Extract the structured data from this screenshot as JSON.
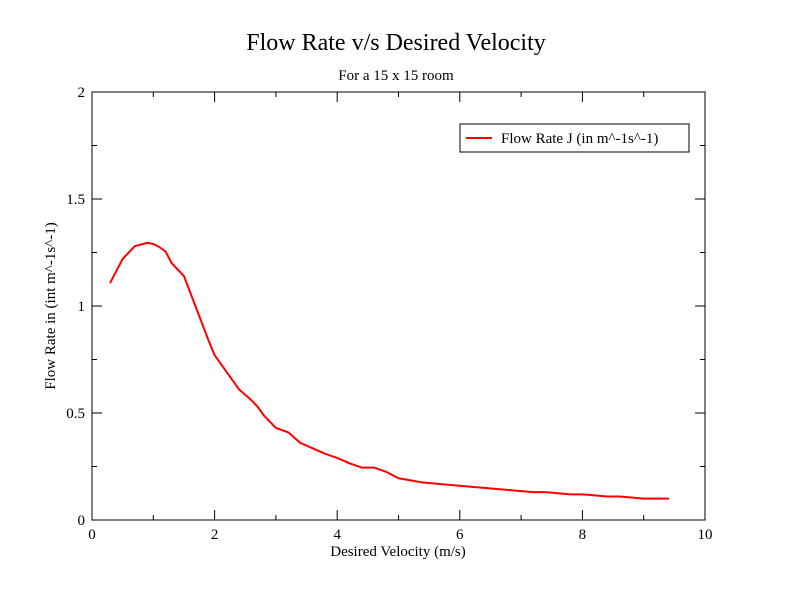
{
  "chart_data": {
    "type": "line",
    "title": "Flow Rate v/s Desired Velocity",
    "subtitle": "For a 15 x 15 room",
    "xlabel": "Desired Velocity (m/s)",
    "ylabel": "Flow Rate in (int m^-1s^-1)",
    "xlim": [
      0,
      10
    ],
    "ylim": [
      0,
      2
    ],
    "x_ticks": [
      "0",
      "2",
      "4",
      "6",
      "8",
      "10"
    ],
    "y_ticks": [
      "0",
      "0.5",
      "1",
      "1.5",
      "2"
    ],
    "grid": false,
    "legend_position": "top-right",
    "series": [
      {
        "name": "Flow Rate J (in m^-1s^-1)",
        "color": "#ff0000",
        "x": [
          0.3,
          0.5,
          0.7,
          0.9,
          1.0,
          1.1,
          1.2,
          1.3,
          1.5,
          1.7,
          1.9,
          2.0,
          2.2,
          2.4,
          2.6,
          2.7,
          2.8,
          2.9,
          3.0,
          3.2,
          3.4,
          3.6,
          3.8,
          4.0,
          4.2,
          4.4,
          4.6,
          4.8,
          5.0,
          5.2,
          5.4,
          5.6,
          5.8,
          6.0,
          6.2,
          6.4,
          6.6,
          6.8,
          7.0,
          7.2,
          7.4,
          7.6,
          7.8,
          8.0,
          8.2,
          8.4,
          8.6,
          8.8,
          9.0,
          9.2,
          9.4
        ],
        "values": [
          1.11,
          1.22,
          1.28,
          1.295,
          1.29,
          1.275,
          1.255,
          1.2,
          1.14,
          0.99,
          0.84,
          0.77,
          0.69,
          0.61,
          0.56,
          0.53,
          0.49,
          0.46,
          0.43,
          0.41,
          0.36,
          0.335,
          0.31,
          0.29,
          0.265,
          0.245,
          0.245,
          0.225,
          0.195,
          0.185,
          0.175,
          0.17,
          0.165,
          0.16,
          0.155,
          0.15,
          0.145,
          0.14,
          0.135,
          0.13,
          0.13,
          0.125,
          0.12,
          0.12,
          0.115,
          0.11,
          0.11,
          0.105,
          0.1,
          0.1,
          0.1
        ]
      }
    ]
  }
}
